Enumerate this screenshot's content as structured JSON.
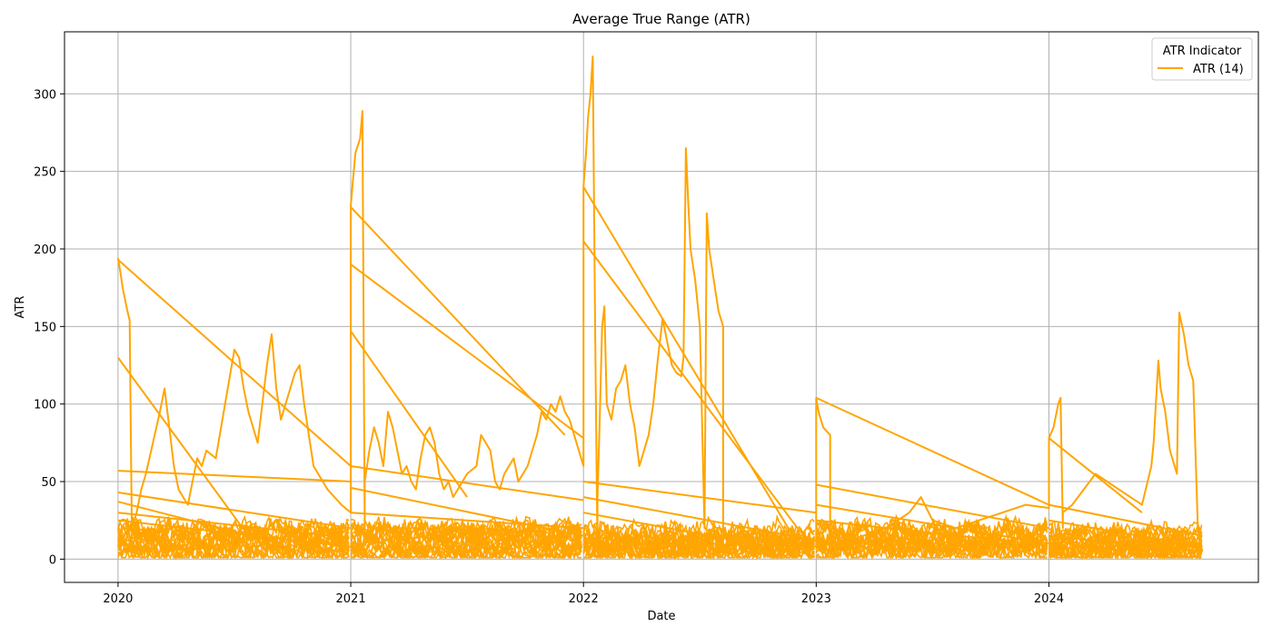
{
  "chart_data": {
    "type": "line",
    "title": "Average True Range (ATR)",
    "xlabel": "Date",
    "ylabel": "ATR",
    "xlim": [
      2019.77,
      2024.9
    ],
    "ylim": [
      -15,
      340
    ],
    "x_ticks": [
      2020,
      2021,
      2022,
      2023,
      2024
    ],
    "x_tick_labels": [
      "2020",
      "2021",
      "2022",
      "2023",
      "2024"
    ],
    "y_ticks": [
      0,
      50,
      100,
      150,
      200,
      250,
      300
    ],
    "y_tick_labels": [
      "0",
      "50",
      "100",
      "150",
      "200",
      "250",
      "300"
    ],
    "grid": true,
    "legend": {
      "title": "ATR Indicator",
      "placement": "top-right",
      "entries": [
        "ATR (14)"
      ]
    },
    "series": [
      {
        "name": "ATR (14)",
        "color": "#ffa500",
        "x": [
          2020.0,
          2020.01,
          2020.02,
          2020.04,
          2020.05,
          2020.06,
          2020.06,
          2020.08,
          2020.1,
          2020.12,
          2020.15,
          2020.18,
          2020.2,
          2020.22,
          2020.24,
          2020.26,
          2020.28,
          2020.3,
          2020.32,
          2020.34,
          2020.36,
          2020.38,
          2020.42,
          2020.46,
          2020.5,
          2020.52,
          2020.54,
          2020.56,
          2020.58,
          2020.6,
          2020.62,
          2020.64,
          2020.66,
          2020.68,
          2020.7,
          2020.72,
          2020.74,
          2020.76,
          2020.78,
          2020.8,
          2020.82,
          2020.84,
          2020.86,
          2020.88,
          2020.9,
          2020.93,
          2020.96,
          2021.0,
          2021.0,
          2021.01,
          2021.02,
          2021.04,
          2021.05,
          2021.06,
          2021.06,
          2021.08,
          2021.1,
          2021.12,
          2021.14,
          2021.16,
          2021.18,
          2021.2,
          2021.22,
          2021.24,
          2021.26,
          2021.28,
          2021.3,
          2021.32,
          2021.34,
          2021.36,
          2021.38,
          2021.4,
          2021.42,
          2021.44,
          2021.46,
          2021.5,
          2021.54,
          2021.56,
          2021.58,
          2021.6,
          2021.62,
          2021.64,
          2021.66,
          2021.68,
          2021.7,
          2021.72,
          2021.74,
          2021.76,
          2021.78,
          2021.8,
          2021.82,
          2021.84,
          2021.86,
          2021.88,
          2021.9,
          2021.92,
          2021.94,
          2021.96,
          2021.98,
          2022.0,
          2022.0,
          2022.01,
          2022.02,
          2022.03,
          2022.04,
          2022.05,
          2022.06,
          2022.06,
          2022.07,
          2022.08,
          2022.09,
          2022.1,
          2022.12,
          2022.14,
          2022.16,
          2022.18,
          2022.2,
          2022.22,
          2022.24,
          2022.26,
          2022.28,
          2022.3,
          2022.32,
          2022.34,
          2022.36,
          2022.38,
          2022.4,
          2022.42,
          2022.43,
          2022.44,
          2022.45,
          2022.46,
          2022.48,
          2022.5,
          2022.52,
          2022.53,
          2022.54,
          2022.56,
          2022.58,
          2022.6,
          2022.6,
          2022.64,
          2022.7,
          2022.8,
          2022.9,
          2023.0,
          2023.0,
          2023.01,
          2023.03,
          2023.06,
          2023.06,
          2023.1,
          2023.2,
          2023.3,
          2023.4,
          2023.45,
          2023.5,
          2023.6,
          2023.7,
          2023.8,
          2023.9,
          2024.0,
          2024.0,
          2024.02,
          2024.04,
          2024.05,
          2024.06,
          2024.06,
          2024.1,
          2024.15,
          2024.2,
          2024.25,
          2024.3,
          2024.35,
          2024.4,
          2024.44,
          2024.45,
          2024.47,
          2024.48,
          2024.5,
          2024.52,
          2024.54,
          2024.55,
          2024.56,
          2024.58,
          2024.6,
          2024.62,
          2024.64,
          2024.65,
          2024.66
        ],
        "y": [
          194,
          185,
          175,
          160,
          154,
          8,
          20,
          30,
          45,
          55,
          75,
          95,
          110,
          85,
          60,
          45,
          40,
          35,
          50,
          65,
          60,
          70,
          65,
          100,
          135,
          130,
          110,
          95,
          85,
          75,
          100,
          125,
          145,
          110,
          90,
          100,
          110,
          120,
          125,
          100,
          80,
          60,
          55,
          50,
          45,
          40,
          35,
          30,
          228,
          245,
          262,
          271,
          289,
          20,
          50,
          70,
          85,
          75,
          60,
          95,
          85,
          70,
          55,
          60,
          50,
          45,
          65,
          80,
          85,
          75,
          55,
          45,
          50,
          40,
          45,
          55,
          60,
          80,
          75,
          70,
          50,
          45,
          55,
          60,
          65,
          50,
          55,
          60,
          70,
          80,
          95,
          90,
          100,
          95,
          105,
          95,
          90,
          80,
          70,
          60,
          240,
          260,
          285,
          300,
          324,
          150,
          5,
          40,
          90,
          150,
          163,
          100,
          90,
          110,
          115,
          125,
          100,
          85,
          60,
          70,
          80,
          100,
          130,
          155,
          140,
          125,
          120,
          118,
          130,
          265,
          230,
          200,
          180,
          150,
          20,
          223,
          200,
          180,
          160,
          150,
          5,
          10,
          15,
          12,
          10,
          8,
          104,
          95,
          85,
          80,
          5,
          10,
          15,
          20,
          30,
          40,
          25,
          20,
          25,
          30,
          35,
          33,
          78,
          85,
          100,
          104,
          20,
          30,
          35,
          45,
          55,
          50,
          45,
          40,
          35,
          60,
          75,
          128,
          110,
          95,
          70,
          60,
          55,
          159,
          145,
          125,
          115,
          20,
          10,
          5
        ],
        "cross_lines": [
          [
            2020.0,
            193,
            2021.0,
            60
          ],
          [
            2020.0,
            130,
            2020.56,
            15
          ],
          [
            2020.0,
            57,
            2021.0,
            50
          ],
          [
            2020.0,
            43,
            2021.0,
            20
          ],
          [
            2020.0,
            37,
            2020.7,
            10
          ],
          [
            2020.0,
            30,
            2020.92,
            15
          ],
          [
            2020.0,
            25,
            2021.0,
            8
          ],
          [
            2021.0,
            227,
            2021.92,
            80
          ],
          [
            2021.0,
            190,
            2022.0,
            78
          ],
          [
            2021.0,
            147,
            2021.5,
            40
          ],
          [
            2021.0,
            60,
            2022.0,
            38
          ],
          [
            2021.0,
            46,
            2022.0,
            15
          ],
          [
            2021.0,
            30,
            2022.0,
            20
          ],
          [
            2022.0,
            240,
            2022.92,
            10
          ],
          [
            2022.0,
            205,
            2022.92,
            20
          ],
          [
            2022.0,
            50,
            2023.0,
            30
          ],
          [
            2022.0,
            40,
            2023.0,
            12
          ],
          [
            2022.0,
            30,
            2022.8,
            8
          ],
          [
            2023.0,
            104,
            2024.0,
            35
          ],
          [
            2023.0,
            48,
            2024.0,
            20
          ],
          [
            2023.0,
            35,
            2024.0,
            10
          ],
          [
            2023.0,
            25,
            2023.8,
            12
          ],
          [
            2024.0,
            78,
            2024.4,
            30
          ],
          [
            2024.0,
            35,
            2024.66,
            15
          ],
          [
            2024.0,
            25,
            2024.66,
            8
          ],
          [
            2024.0,
            15,
            2024.66,
            5
          ]
        ]
      }
    ]
  }
}
